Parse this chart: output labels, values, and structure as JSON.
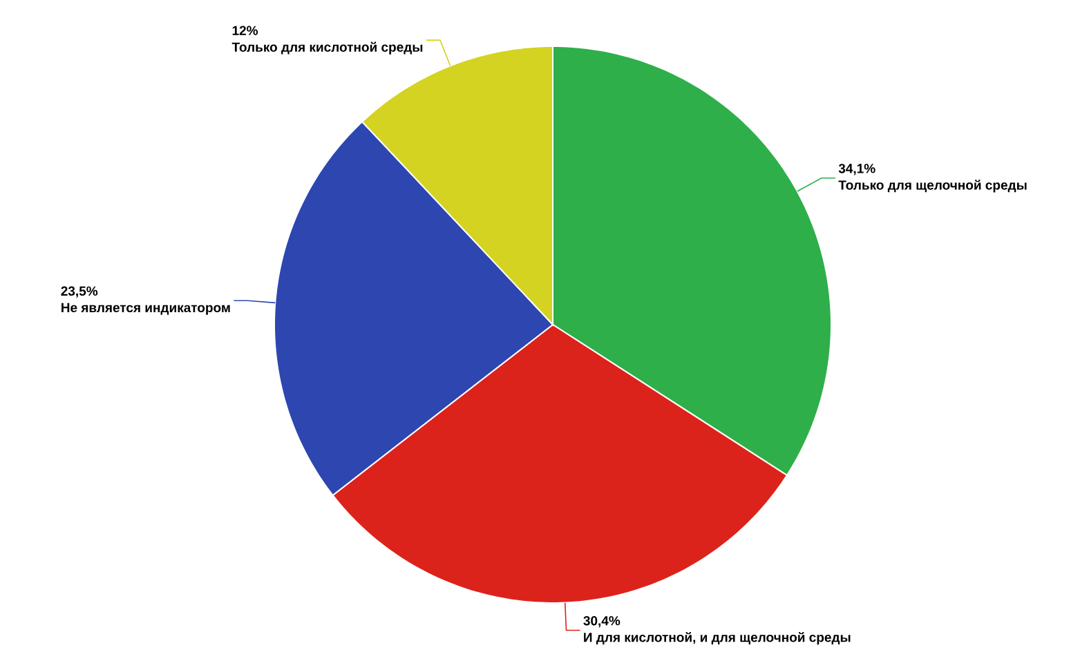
{
  "chart_data": {
    "type": "pie",
    "categories": [
      "Только для щелочной среды",
      "И для кислотной, и для щелочной среды",
      "Не является индикатором",
      "Только для кислотной среды"
    ],
    "values": [
      34.1,
      30.4,
      23.5,
      12
    ],
    "value_labels": [
      "34,1%",
      "30,4%",
      "23,5%",
      "12%"
    ],
    "colors": [
      "#2eaf4a",
      "#dc231b",
      "#2d46b0",
      "#d4d321"
    ]
  }
}
